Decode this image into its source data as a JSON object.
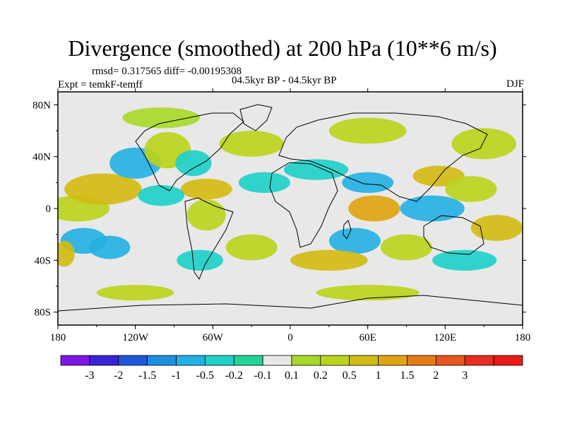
{
  "title": "Divergence (smoothed) at 200 hPa (10**6 m/s)",
  "stats": "rmsd= 0.317565 diff= -0.00195308",
  "experiment": "Expt = temkF-temff",
  "period": "04.5kyr BP - 04.5kyr BP",
  "season": "DJF",
  "chart_data": {
    "type": "heatmap",
    "title": "Divergence (smoothed) at 200 hPa (10**6 m/s)",
    "projection": "cylindrical equidistant",
    "xlim": [
      -180,
      180
    ],
    "ylim": [
      -90,
      90
    ],
    "x_ticks": [
      {
        "value": -180,
        "label": "180"
      },
      {
        "value": -120,
        "label": "120W"
      },
      {
        "value": -60,
        "label": "60W"
      },
      {
        "value": 0,
        "label": "0"
      },
      {
        "value": 60,
        "label": "60E"
      },
      {
        "value": 120,
        "label": "120E"
      },
      {
        "value": 180,
        "label": "180"
      }
    ],
    "y_ticks": [
      {
        "value": 80,
        "label": "80N"
      },
      {
        "value": 40,
        "label": "40N"
      },
      {
        "value": 0,
        "label": "0"
      },
      {
        "value": -40,
        "label": "40S"
      },
      {
        "value": -80,
        "label": "80S"
      }
    ],
    "colorbar": {
      "colors": [
        "#7f16e6",
        "#3a23d6",
        "#1f57d8",
        "#1d8fe0",
        "#25b1e3",
        "#1fd0c8",
        "#22d49a",
        "#e8e8e8",
        "#a7d92a",
        "#bcd31c",
        "#d3bb12",
        "#e0a411",
        "#e67c15",
        "#e8561d",
        "#e62d1f",
        "#ea1a18"
      ],
      "levels": [
        -3,
        -2,
        -1.5,
        -1,
        -0.5,
        -0.2,
        -0.1,
        0.1,
        0.2,
        0.5,
        1,
        1.5,
        2,
        3
      ],
      "labels": [
        "-3",
        "-2",
        "-1.5",
        "-1",
        "-0.5",
        "-0.2",
        "-0.1",
        "0.1",
        "0.2",
        "0.5",
        "1",
        "1.5",
        "2",
        "3"
      ]
    },
    "field_blobs": [
      {
        "lon": -165,
        "lat": 0,
        "rlon": 25,
        "rlat": 10,
        "value": 0.3
      },
      {
        "lon": -145,
        "lat": 15,
        "rlon": 30,
        "rlat": 12,
        "value": 0.6
      },
      {
        "lon": -160,
        "lat": -25,
        "rlon": 18,
        "rlat": 10,
        "value": -0.8
      },
      {
        "lon": -140,
        "lat": -30,
        "rlon": 16,
        "rlat": 9,
        "value": -0.6
      },
      {
        "lon": -175,
        "lat": -35,
        "rlon": 8,
        "rlat": 10,
        "value": 0.8
      },
      {
        "lon": -120,
        "lat": 35,
        "rlon": 20,
        "rlat": 12,
        "value": -0.5
      },
      {
        "lon": -95,
        "lat": 45,
        "rlon": 18,
        "rlat": 14,
        "value": 0.3
      },
      {
        "lon": -75,
        "lat": 35,
        "rlon": 14,
        "rlat": 10,
        "value": -0.4
      },
      {
        "lon": -65,
        "lat": 15,
        "rlon": 20,
        "rlat": 8,
        "value": 0.7
      },
      {
        "lon": -100,
        "lat": 10,
        "rlon": 18,
        "rlat": 8,
        "value": -0.3
      },
      {
        "lon": -65,
        "lat": -5,
        "rlon": 15,
        "rlat": 12,
        "value": 0.4
      },
      {
        "lon": -70,
        "lat": -40,
        "rlon": 18,
        "rlat": 8,
        "value": -0.4
      },
      {
        "lon": -30,
        "lat": -30,
        "rlon": 20,
        "rlat": 10,
        "value": 0.4
      },
      {
        "lon": -20,
        "lat": 20,
        "rlon": 20,
        "rlat": 8,
        "value": -0.4
      },
      {
        "lon": -30,
        "lat": 50,
        "rlon": 25,
        "rlat": 10,
        "value": 0.3
      },
      {
        "lon": 20,
        "lat": 30,
        "rlon": 25,
        "rlat": 8,
        "value": -0.3
      },
      {
        "lon": 60,
        "lat": 20,
        "rlon": 20,
        "rlat": 8,
        "value": -0.9
      },
      {
        "lon": 65,
        "lat": 0,
        "rlon": 20,
        "rlat": 10,
        "value": 1.2
      },
      {
        "lon": 50,
        "lat": -25,
        "rlon": 20,
        "rlat": 10,
        "value": -0.5
      },
      {
        "lon": 30,
        "lat": -40,
        "rlon": 30,
        "rlat": 8,
        "value": 0.6
      },
      {
        "lon": 90,
        "lat": -30,
        "rlon": 20,
        "rlat": 10,
        "value": 0.5
      },
      {
        "lon": 110,
        "lat": 0,
        "rlon": 25,
        "rlat": 10,
        "value": -0.5
      },
      {
        "lon": 115,
        "lat": 25,
        "rlon": 20,
        "rlat": 8,
        "value": 0.8
      },
      {
        "lon": 140,
        "lat": 15,
        "rlon": 20,
        "rlat": 10,
        "value": 0.4
      },
      {
        "lon": 160,
        "lat": -15,
        "rlon": 20,
        "rlat": 10,
        "value": 0.6
      },
      {
        "lon": 135,
        "lat": -40,
        "rlon": 25,
        "rlat": 8,
        "value": -0.4
      },
      {
        "lon": 150,
        "lat": 50,
        "rlon": 25,
        "rlat": 12,
        "value": 0.3
      },
      {
        "lon": 60,
        "lat": 60,
        "rlon": 30,
        "rlat": 10,
        "value": 0.3
      },
      {
        "lon": -100,
        "lat": 70,
        "rlon": 30,
        "rlat": 8,
        "value": 0.2
      },
      {
        "lon": 60,
        "lat": -65,
        "rlon": 40,
        "rlat": 6,
        "value": 0.3
      },
      {
        "lon": -120,
        "lat": -65,
        "rlon": 30,
        "rlat": 6,
        "value": 0.3
      }
    ]
  }
}
